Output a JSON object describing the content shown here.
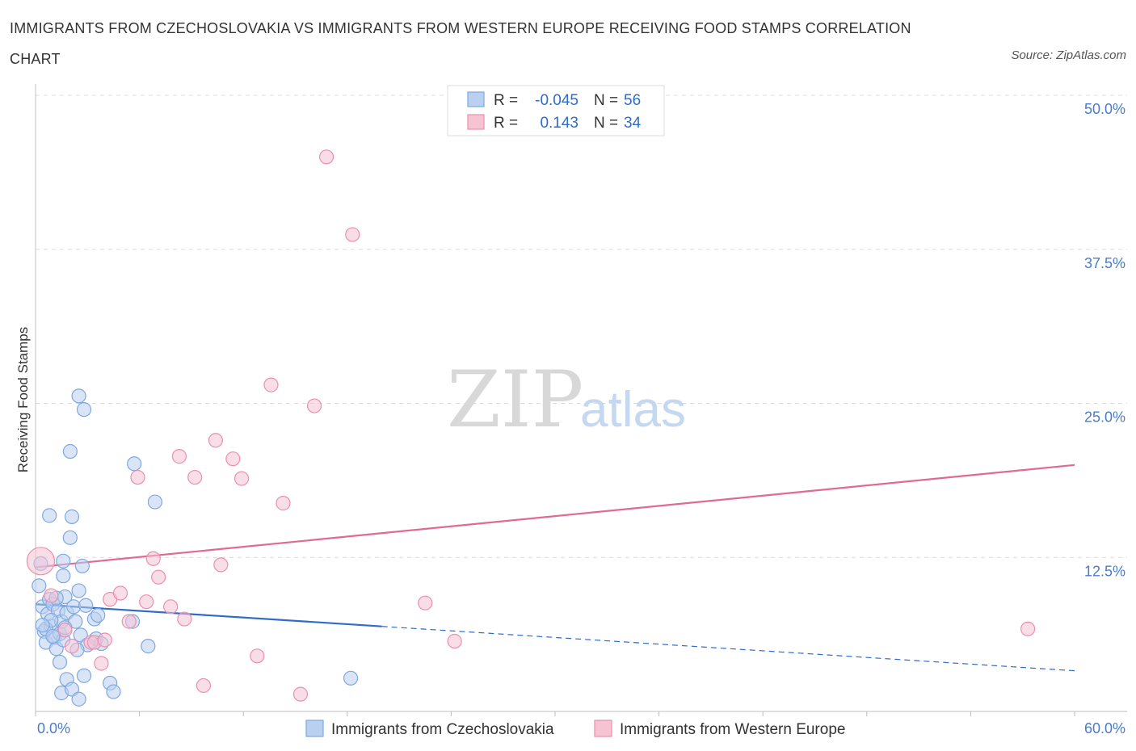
{
  "chart_data": {
    "type": "scatter",
    "title": "IMMIGRANTS FROM CZECHOSLOVAKIA VS IMMIGRANTS FROM WESTERN EUROPE RECEIVING FOOD STAMPS CORRELATION CHART",
    "source": "Source: ZipAtlas.com",
    "ylabel": "Receiving Food Stamps",
    "xlim": [
      0,
      60
    ],
    "ylim": [
      0,
      50
    ],
    "x_tick_labels": [
      "0.0%",
      "60.0%"
    ],
    "y_ticks": [
      12.5,
      25.0,
      37.5,
      50.0
    ],
    "y_tick_labels": [
      "12.5%",
      "25.0%",
      "37.5%",
      "50.0%"
    ],
    "watermark": {
      "zip": "ZIP",
      "atlas": "atlas"
    },
    "legend": [
      {
        "r_label": "R =",
        "r_value": "-0.045",
        "n_label": "N =",
        "n_value": "56"
      },
      {
        "r_label": "R =",
        "r_value": "0.143",
        "n_label": "N =",
        "n_value": "34"
      }
    ],
    "series": [
      {
        "name": "Immigrants from Czechoslovakia",
        "color": "#7fa8e0",
        "fill": "#b9d0f0",
        "line_color": "#2f6bc9",
        "trend": {
          "x0": 0,
          "y0": 8.7,
          "x1": 20,
          "y1": 6.9,
          "x_dash_end": 60,
          "y_dash_end": 3.3
        },
        "points": [
          [
            0.2,
            10.2
          ],
          [
            0.4,
            8.5
          ],
          [
            0.5,
            6.5
          ],
          [
            0.6,
            5.6
          ],
          [
            0.7,
            7.9
          ],
          [
            0.8,
            9.1
          ],
          [
            0.9,
            6.9
          ],
          [
            1.0,
            8.7
          ],
          [
            1.1,
            6.0
          ],
          [
            1.2,
            5.1
          ],
          [
            1.3,
            8.2
          ],
          [
            1.4,
            6.3
          ],
          [
            1.5,
            7.3
          ],
          [
            1.6,
            5.8
          ],
          [
            1.7,
            9.3
          ],
          [
            1.8,
            8.0
          ],
          [
            0.3,
            12.0
          ],
          [
            0.8,
            15.9
          ],
          [
            1.6,
            12.2
          ],
          [
            1.6,
            11.0
          ],
          [
            2.0,
            14.1
          ],
          [
            2.1,
            15.8
          ],
          [
            2.0,
            21.1
          ],
          [
            2.5,
            25.6
          ],
          [
            2.8,
            24.5
          ],
          [
            2.5,
            9.8
          ],
          [
            2.7,
            11.8
          ],
          [
            2.3,
            7.3
          ],
          [
            2.6,
            6.2
          ],
          [
            1.4,
            4.0
          ],
          [
            1.8,
            2.6
          ],
          [
            1.5,
            1.5
          ],
          [
            2.1,
            1.8
          ],
          [
            2.5,
            1.0
          ],
          [
            2.8,
            2.9
          ],
          [
            3.0,
            5.4
          ],
          [
            3.4,
            7.5
          ],
          [
            3.5,
            5.9
          ],
          [
            3.6,
            7.8
          ],
          [
            3.8,
            5.5
          ],
          [
            4.3,
            2.3
          ],
          [
            4.5,
            1.6
          ],
          [
            5.7,
            20.1
          ],
          [
            6.9,
            17.0
          ],
          [
            5.6,
            7.3
          ],
          [
            6.5,
            5.3
          ],
          [
            18.2,
            2.7
          ],
          [
            0.6,
            6.7
          ],
          [
            1.2,
            9.2
          ],
          [
            0.9,
            7.4
          ],
          [
            1.7,
            6.8
          ],
          [
            2.2,
            8.5
          ],
          [
            2.9,
            8.6
          ],
          [
            1.0,
            6.1
          ],
          [
            0.4,
            7.0
          ],
          [
            2.4,
            5.0
          ]
        ]
      },
      {
        "name": "Immigrants from Western Europe",
        "color": "#eb8fad",
        "fill": "#f6c3d3",
        "line_color": "#e06a95",
        "trend": {
          "x0": 0,
          "y0": 11.7,
          "x1": 60,
          "y1": 20.0
        },
        "points": [
          [
            0.3,
            12.2
          ],
          [
            0.9,
            9.4
          ],
          [
            1.7,
            6.6
          ],
          [
            2.1,
            5.3
          ],
          [
            3.2,
            5.6
          ],
          [
            3.4,
            5.6
          ],
          [
            3.8,
            3.9
          ],
          [
            4.3,
            9.1
          ],
          [
            4.9,
            9.6
          ],
          [
            5.4,
            7.3
          ],
          [
            5.9,
            19.0
          ],
          [
            6.4,
            8.9
          ],
          [
            6.8,
            12.4
          ],
          [
            7.1,
            10.9
          ],
          [
            7.8,
            8.5
          ],
          [
            8.3,
            20.7
          ],
          [
            8.6,
            7.5
          ],
          [
            9.2,
            19.0
          ],
          [
            9.7,
            2.1
          ],
          [
            10.4,
            22.0
          ],
          [
            10.7,
            11.9
          ],
          [
            11.4,
            20.5
          ],
          [
            11.9,
            18.9
          ],
          [
            12.8,
            4.5
          ],
          [
            13.6,
            26.5
          ],
          [
            14.3,
            16.9
          ],
          [
            15.3,
            1.4
          ],
          [
            16.1,
            24.8
          ],
          [
            16.8,
            45.0
          ],
          [
            18.3,
            38.7
          ],
          [
            22.5,
            8.8
          ],
          [
            24.2,
            5.7
          ],
          [
            57.3,
            6.7
          ],
          [
            4.0,
            5.8
          ]
        ]
      }
    ]
  }
}
